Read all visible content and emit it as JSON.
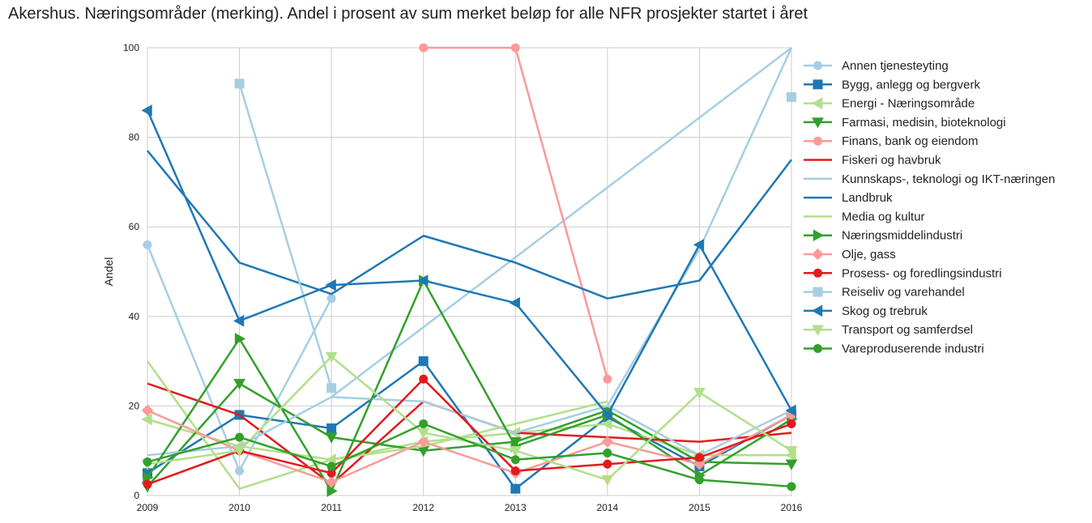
{
  "chart_data": {
    "type": "line",
    "title": "Akershus. Næringsområder (merking). Andel i prosent av sum merket beløp for alle NFR prosjekter startet i året",
    "xlabel": "",
    "ylabel": "Andel",
    "x": [
      2009,
      2010,
      2011,
      2012,
      2013,
      2014,
      2015,
      2016
    ],
    "xlim": [
      2009,
      2016
    ],
    "ylim": [
      0,
      100
    ],
    "yticks": [
      0,
      20,
      40,
      60,
      80,
      100
    ],
    "grid": true,
    "legend_position": "right, outside plot",
    "series": [
      {
        "name": "Annen tjenesteyting",
        "color": "#a6cee3",
        "marker": "circle",
        "values": [
          56,
          5.5,
          44,
          null,
          null,
          null,
          null,
          null
        ]
      },
      {
        "name": "Bygg, anlegg og bergverk",
        "color": "#1f78b4",
        "marker": "square",
        "values": [
          5,
          18,
          15,
          30,
          1.5,
          17.5,
          6.5,
          18
        ]
      },
      {
        "name": "Energi - Næringsområde",
        "color": "#b2df8a",
        "marker": "triangle-left",
        "values": [
          17,
          11,
          8,
          12,
          14,
          16,
          9,
          9
        ]
      },
      {
        "name": "Farmasi, medisin, bioteknologi",
        "color": "#33a02c",
        "marker": "triangle-down",
        "values": [
          2,
          25,
          13,
          10,
          12,
          19,
          7.5,
          7
        ]
      },
      {
        "name": "Finans, bank og eiendom",
        "color": "#fb9a99",
        "marker": "circle",
        "values": [
          null,
          null,
          null,
          100,
          100,
          26,
          null,
          null
        ]
      },
      {
        "name": "Fiskeri og havbruk",
        "color": "#e31a1c",
        "marker": "none",
        "values": [
          25,
          18,
          2.5,
          21,
          14,
          13,
          12,
          14
        ]
      },
      {
        "name": "Kunnskaps-, teknologi og IKT-næringen",
        "color": "#a6cee3",
        "marker": "none",
        "values": [
          9,
          11,
          22,
          21,
          14,
          20,
          9,
          19
        ]
      },
      {
        "name": "Landbruk",
        "color": "#1f78b4",
        "marker": "none",
        "values": [
          77,
          52,
          45,
          58,
          52,
          44,
          48,
          75
        ]
      },
      {
        "name": "Media og kultur",
        "color": "#b2df8a",
        "marker": "none",
        "values": [
          30,
          1.5,
          8,
          11,
          16,
          21,
          null,
          null
        ]
      },
      {
        "name": "Næringsmiddelindustri",
        "color": "#33a02c",
        "marker": "triangle-right",
        "values": [
          4,
          35,
          1,
          48,
          11,
          18,
          4.5,
          17
        ]
      },
      {
        "name": "Olje, gass",
        "color": "#fb9a99",
        "marker": "diamond",
        "values": [
          19,
          10,
          3,
          12,
          5,
          12,
          7,
          18
        ]
      },
      {
        "name": "Prosess- og foredlingsindustri",
        "color": "#e31a1c",
        "marker": "circle",
        "values": [
          2.5,
          10,
          5,
          26,
          5.5,
          7,
          8.5,
          16
        ]
      },
      {
        "name": "Reiseliv og varehandel",
        "color": "#a6cee3",
        "marker": "square",
        "values": [
          null,
          92,
          24,
          null,
          null,
          null,
          null,
          89
        ]
      },
      {
        "name": "Skog og trebruk",
        "color": "#1f78b4",
        "marker": "triangle-left",
        "values": [
          86,
          39,
          47,
          48,
          43,
          18,
          56,
          19
        ]
      },
      {
        "name": "Transport og samferdsel",
        "color": "#b2df8a",
        "marker": "triangle-down",
        "values": [
          7,
          10,
          31,
          14,
          10,
          3.5,
          23,
          10
        ]
      },
      {
        "name": "Vareproduserende industri",
        "color": "#33a02c",
        "marker": "circle",
        "values": [
          7.5,
          13,
          6.5,
          16,
          8,
          9.5,
          3.5,
          2
        ]
      }
    ],
    "extra_segments": [
      {
        "color": "#a6cee3",
        "points": [
          [
            2011,
            22
          ],
          [
            2016,
            100
          ]
        ]
      },
      {
        "color": "#a6cee3",
        "points": [
          [
            2014,
            20
          ],
          [
            2015,
            55
          ],
          [
            2016,
            100
          ]
        ]
      }
    ]
  }
}
